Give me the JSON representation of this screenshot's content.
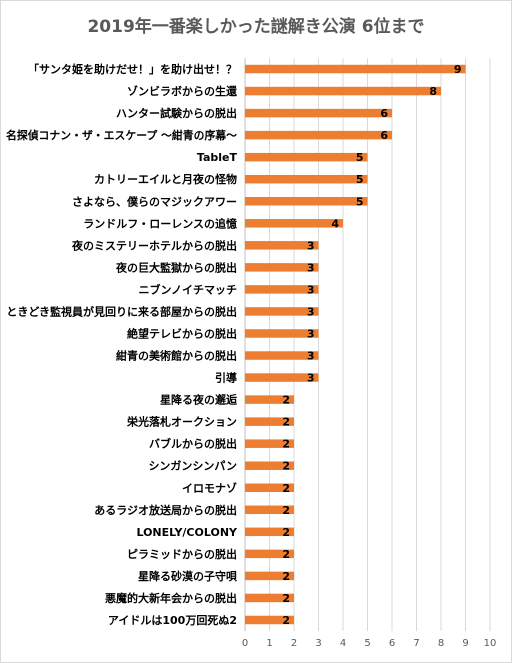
{
  "chart_data": {
    "type": "bar",
    "orientation": "horizontal",
    "title": "2019年一番楽しかった謎解き公演 6位まで",
    "categories": [
      "「サンタ姫を助けだせ！」を助け出せ！？",
      "ゾンビラボからの生還",
      "ハンター試験からの脱出",
      "名探偵コナン・ザ・エスケープ ～紺青の序幕～",
      "TableT",
      "カトリーエイルと月夜の怪物",
      "さよなら、僕らのマジックアワー",
      "ランドルフ・ローレンスの追憶",
      "夜のミステリーホテルからの脱出",
      "夜の巨大監獄からの脱出",
      "ニブンノイチマッチ",
      "ときどき監視員が見回りに来る部屋からの脱出",
      "絶望テレビからの脱出",
      "紺青の美術館からの脱出",
      "引導",
      "星降る夜の邂逅",
      "栄光落札オークション",
      "バブルからの脱出",
      "シンガンシンパン",
      "イロモナゾ",
      "あるラジオ放送局からの脱出",
      "LONELY/COLONY",
      "ピラミッドからの脱出",
      "星降る砂漠の子守唄",
      "悪魔的大新年会からの脱出",
      "アイドルは100万回死ぬ2"
    ],
    "values": [
      9,
      8,
      6,
      6,
      5,
      5,
      5,
      4,
      3,
      3,
      3,
      3,
      3,
      3,
      3,
      2,
      2,
      2,
      2,
      2,
      2,
      2,
      2,
      2,
      2,
      2
    ],
    "xlim": [
      0,
      10
    ],
    "xticks": [
      "0",
      "1",
      "2",
      "3",
      "4",
      "5",
      "6",
      "7",
      "8",
      "9",
      "10"
    ],
    "bar_color": "#ed7d31",
    "grid_color": "#d9d9d9",
    "axis_color": "#bfbfbf"
  }
}
